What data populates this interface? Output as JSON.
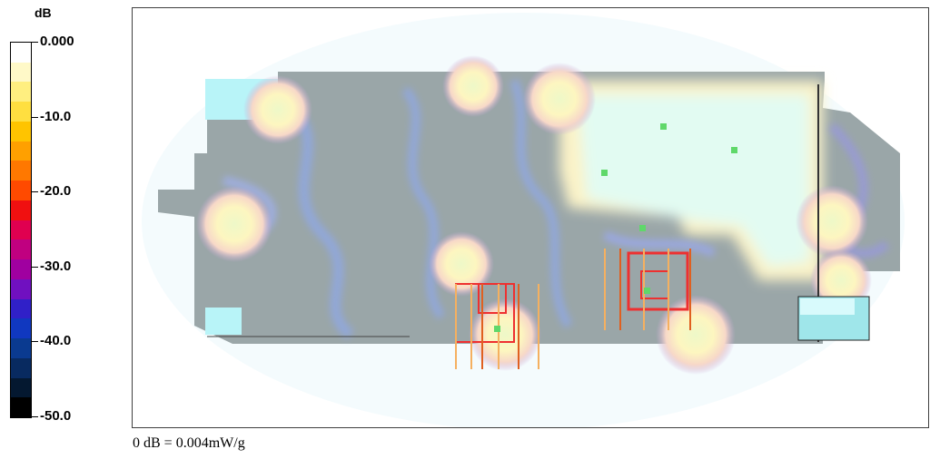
{
  "chart_data": {
    "type": "heatmap",
    "title": "",
    "colorbar": {
      "unit": "dB",
      "ticks": [
        "0.000",
        "-10.0",
        "-20.0",
        "-30.0",
        "-40.0",
        "-50.0"
      ],
      "range": [
        -50,
        0
      ],
      "colors": [
        "#ffffff",
        "#fff9c8",
        "#ffef80",
        "#ffdf40",
        "#ffc400",
        "#ffa000",
        "#ff7800",
        "#ff4a00",
        "#f01010",
        "#e00050",
        "#c00080",
        "#a000a0",
        "#7010c0",
        "#3020c8",
        "#1038c0",
        "#0a3a90",
        "#082a60",
        "#041830",
        "#000000"
      ]
    },
    "footer_note": "0 dB = 0.004mW/g"
  }
}
